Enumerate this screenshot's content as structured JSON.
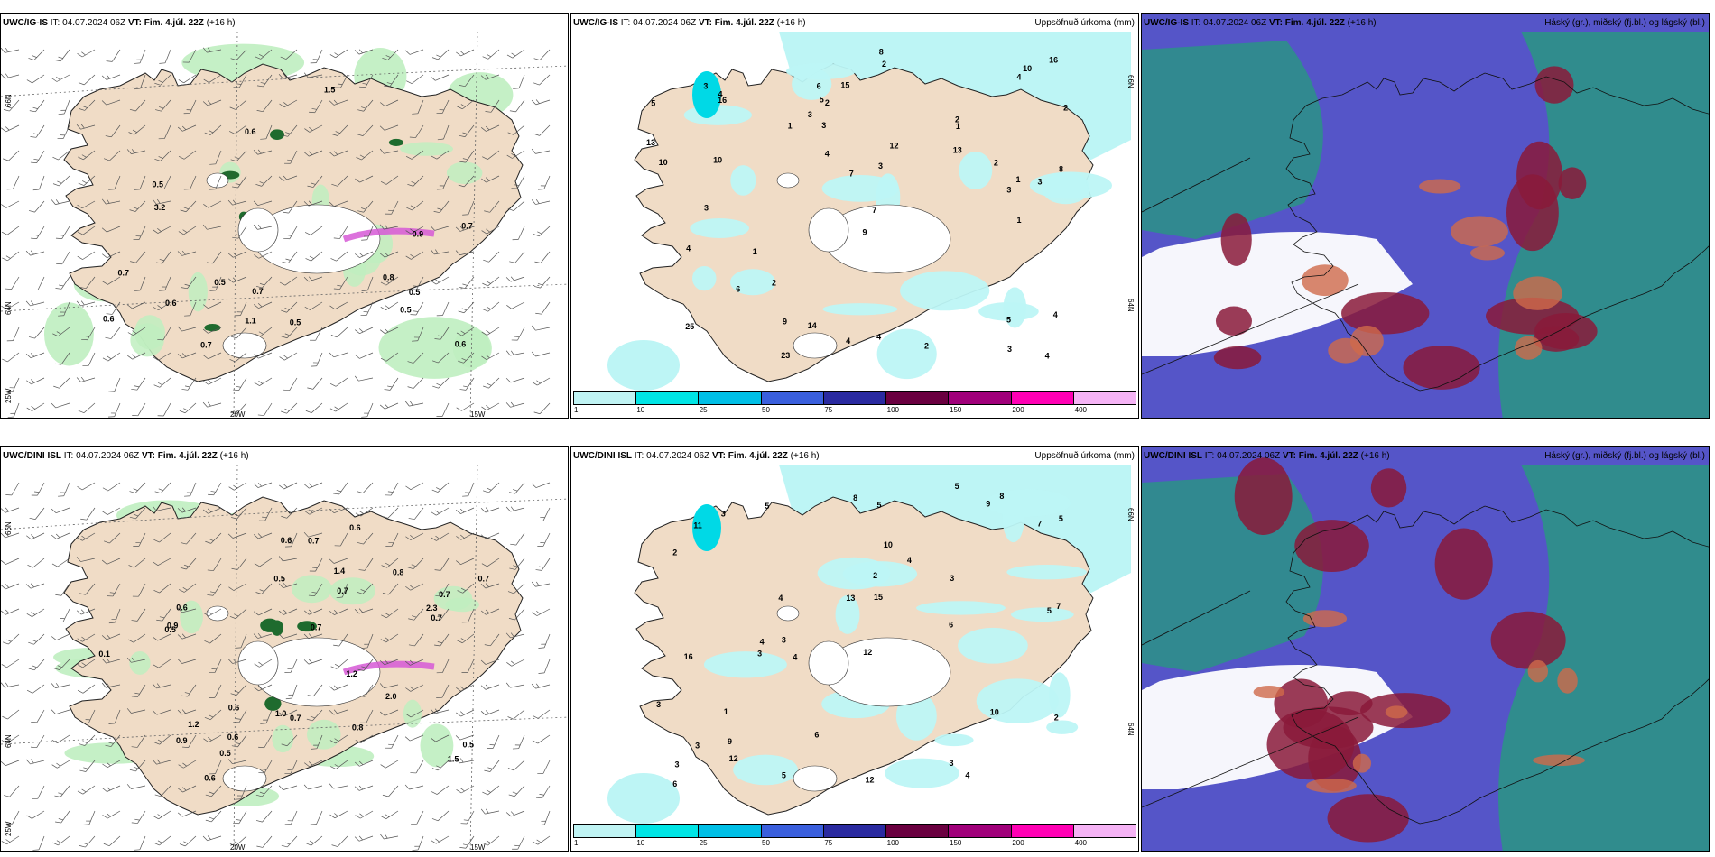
{
  "rows": [
    {
      "model": "UWC/IG-IS",
      "it_label": "IT:",
      "it_value": "04.07.2024 06Z",
      "vt_label": "VT:",
      "vt_value": "Fim. 4.júl. 22Z",
      "lead": "(+16 h)",
      "precip_title": "Uppsöfnuð úrkoma (mm)",
      "cloud_title": "Háský (gr.), miðský (fj.bl.) og lágský (bl.)",
      "lat_labels": [
        "66N",
        "64N"
      ],
      "lon_labels": [
        "25W",
        "20W",
        "15W"
      ],
      "precip_values": [
        "2",
        "14",
        "16",
        "15",
        "25",
        "23",
        "2",
        "3",
        "4",
        "1",
        "5",
        "2",
        "13",
        "7",
        "5",
        "3",
        "3",
        "4",
        "2",
        "6",
        "4",
        "7",
        "10",
        "3",
        "4",
        "1",
        "4",
        "2",
        "9",
        "10",
        "1",
        "3",
        "1",
        "2",
        "4",
        "6",
        "8",
        "13",
        "12",
        "10",
        "9",
        "16",
        "3",
        "1",
        "8",
        "4",
        "3",
        "5",
        "3",
        "2",
        "4"
      ],
      "windmap_values": [
        "0.6",
        "0.5",
        "0.5",
        "0.6",
        "0.5",
        "0.9",
        "0.7",
        "0.7",
        "0.6",
        "0.7",
        "0.5",
        "0.5",
        "0.8",
        "3.2",
        "0.6",
        "1.1",
        "1.5",
        "0.7"
      ]
    },
    {
      "model": "UWC/DINI ISL",
      "it_label": "IT:",
      "it_value": "04.07.2024 06Z",
      "vt_label": "VT:",
      "vt_value": "Fim. 4.júl. 22Z",
      "lead": "(+16 h)",
      "precip_title": "Uppsöfnuð úrkoma (mm)",
      "cloud_title": "Háský (gr.), miðský (fj.bl.) og lágský (bl.)",
      "lat_labels": [
        "66N",
        "64N"
      ],
      "lon_labels": [
        "25W",
        "20W",
        "15W"
      ],
      "precip_values": [
        "5",
        "13",
        "12",
        "3",
        "4",
        "6",
        "2",
        "3",
        "11",
        "4",
        "5",
        "3",
        "8",
        "12",
        "7",
        "5",
        "9",
        "5",
        "6",
        "4",
        "10",
        "3",
        "12",
        "3",
        "2",
        "1",
        "5",
        "3",
        "4",
        "7",
        "9",
        "10",
        "2",
        "15",
        "16",
        "6",
        "3",
        "8",
        "4",
        "5",
        "3"
      ],
      "windmap_values": [
        "0.6",
        "0.7",
        "0.6",
        "0.6",
        "0.5",
        "1.5",
        "0.7",
        "0.8",
        "0.7",
        "0.7",
        "0.5",
        "1.2",
        "0.7",
        "0.5",
        "0.7",
        "0.8",
        "0.6",
        "0.5",
        "0.6",
        "2.0",
        "0.7",
        "0.9",
        "1.0",
        "0.1",
        "1.4",
        "2.3",
        "0.6",
        "1.2",
        "0.9"
      ]
    }
  ],
  "colorbar": {
    "ticks": [
      "1",
      "10",
      "25",
      "50",
      "75",
      "100",
      "150",
      "200",
      "400"
    ],
    "colors": [
      "#bff3f3",
      "#00e5e5",
      "#00bfe6",
      "#3a5fdd",
      "#2a2aa0",
      "#6a0040",
      "#a0007a",
      "#ff00b4",
      "#f5b3f5"
    ]
  },
  "colors": {
    "land": "#f0dcc6",
    "green_light": "#bfeec0",
    "green_dark": "#1f6b2e",
    "precip_light": "#bdf5f5",
    "precip_mid": "#00d9e6",
    "cloud_high": "#8a1a3a",
    "cloud_mid": "#5555c8",
    "cloud_low": "#2e8f8a",
    "magenta": "#d659d6"
  }
}
